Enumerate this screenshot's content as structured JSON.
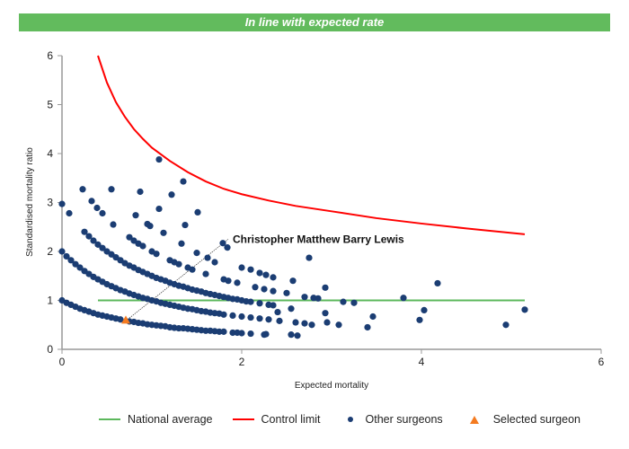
{
  "banner": {
    "text": "In line with expected rate",
    "color": "#62bb5d"
  },
  "chart_data": {
    "type": "scatter",
    "title": "",
    "xlabel": "Expected mortality",
    "ylabel": "Standardised mortality ratio",
    "xlim": [
      0,
      6
    ],
    "ylim": [
      0,
      6
    ],
    "xticks": [
      "0",
      "2",
      "4",
      "6"
    ],
    "yticks": [
      "0",
      "1",
      "2",
      "3",
      "4",
      "5",
      "6"
    ],
    "grid": false,
    "legend_position": "bottom",
    "annotation": {
      "text": "Christopher Matthew Barry Lewis",
      "x": 1.85,
      "y": 2.25
    },
    "series": [
      {
        "name": "National average",
        "type": "line",
        "color": "#5cb85c",
        "points": [
          [
            0.4,
            1
          ],
          [
            5.15,
            1
          ]
        ]
      },
      {
        "name": "Control limit",
        "type": "line",
        "color": "#ff0000",
        "points": [
          [
            0.4,
            6.0
          ],
          [
            0.5,
            5.45
          ],
          [
            0.6,
            5.05
          ],
          [
            0.7,
            4.75
          ],
          [
            0.8,
            4.5
          ],
          [
            0.9,
            4.3
          ],
          [
            1.0,
            4.12
          ],
          [
            1.2,
            3.85
          ],
          [
            1.4,
            3.62
          ],
          [
            1.6,
            3.43
          ],
          [
            1.8,
            3.28
          ],
          [
            2.0,
            3.17
          ],
          [
            2.3,
            3.04
          ],
          [
            2.6,
            2.93
          ],
          [
            3.0,
            2.82
          ],
          [
            3.5,
            2.68
          ],
          [
            4.0,
            2.57
          ],
          [
            4.5,
            2.47
          ],
          [
            5.15,
            2.35
          ]
        ]
      },
      {
        "name": "Other surgeons",
        "type": "scatter",
        "color": "#1b3d73",
        "points": [
          [
            0,
            1.0
          ],
          [
            0.05,
            0.95
          ],
          [
            0.1,
            0.91
          ],
          [
            0.15,
            0.87
          ],
          [
            0.2,
            0.83
          ],
          [
            0.25,
            0.8
          ],
          [
            0.3,
            0.77
          ],
          [
            0.35,
            0.74
          ],
          [
            0.4,
            0.71
          ],
          [
            0.45,
            0.69
          ],
          [
            0.5,
            0.67
          ],
          [
            0.55,
            0.65
          ],
          [
            0.6,
            0.63
          ],
          [
            0.65,
            0.61
          ],
          [
            0.75,
            0.57
          ],
          [
            0.8,
            0.56
          ],
          [
            0.85,
            0.54
          ],
          [
            0.9,
            0.53
          ],
          [
            0.95,
            0.51
          ],
          [
            1.0,
            0.5
          ],
          [
            1.05,
            0.49
          ],
          [
            1.1,
            0.48
          ],
          [
            1.15,
            0.47
          ],
          [
            1.2,
            0.45
          ],
          [
            1.25,
            0.44
          ],
          [
            1.3,
            0.43
          ],
          [
            1.35,
            0.43
          ],
          [
            1.4,
            0.42
          ],
          [
            1.45,
            0.41
          ],
          [
            1.5,
            0.4
          ],
          [
            1.55,
            0.39
          ],
          [
            1.6,
            0.38
          ],
          [
            1.65,
            0.38
          ],
          [
            1.7,
            0.37
          ],
          [
            1.75,
            0.36
          ],
          [
            1.8,
            0.36
          ],
          [
            1.9,
            0.34
          ],
          [
            1.95,
            0.34
          ],
          [
            2.0,
            0.33
          ],
          [
            2.1,
            0.32
          ],
          [
            2.27,
            0.31
          ],
          [
            0,
            2.0
          ],
          [
            0.05,
            1.9
          ],
          [
            0.1,
            1.82
          ],
          [
            0.15,
            1.74
          ],
          [
            0.2,
            1.67
          ],
          [
            0.25,
            1.6
          ],
          [
            0.3,
            1.54
          ],
          [
            0.35,
            1.48
          ],
          [
            0.4,
            1.43
          ],
          [
            0.45,
            1.38
          ],
          [
            0.5,
            1.33
          ],
          [
            0.55,
            1.29
          ],
          [
            0.6,
            1.25
          ],
          [
            0.65,
            1.21
          ],
          [
            0.7,
            1.18
          ],
          [
            0.75,
            1.14
          ],
          [
            0.8,
            1.11
          ],
          [
            0.85,
            1.08
          ],
          [
            0.9,
            1.05
          ],
          [
            0.95,
            1.03
          ],
          [
            1.0,
            1.0
          ],
          [
            1.05,
            0.98
          ],
          [
            1.1,
            0.95
          ],
          [
            1.15,
            0.93
          ],
          [
            1.2,
            0.91
          ],
          [
            1.25,
            0.89
          ],
          [
            1.3,
            0.87
          ],
          [
            1.35,
            0.85
          ],
          [
            1.4,
            0.83
          ],
          [
            1.45,
            0.82
          ],
          [
            1.5,
            0.8
          ],
          [
            1.55,
            0.78
          ],
          [
            1.6,
            0.77
          ],
          [
            1.65,
            0.75
          ],
          [
            1.7,
            0.74
          ],
          [
            1.75,
            0.73
          ],
          [
            1.8,
            0.71
          ],
          [
            1.9,
            0.69
          ],
          [
            2.0,
            0.67
          ],
          [
            2.1,
            0.65
          ],
          [
            2.2,
            0.63
          ],
          [
            2.3,
            0.61
          ],
          [
            0.25,
            2.4
          ],
          [
            0.3,
            2.31
          ],
          [
            0.35,
            2.22
          ],
          [
            0.4,
            2.14
          ],
          [
            0.45,
            2.07
          ],
          [
            0.5,
            2.0
          ],
          [
            0.55,
            1.94
          ],
          [
            0.6,
            1.88
          ],
          [
            0.65,
            1.82
          ],
          [
            0.7,
            1.76
          ],
          [
            0.75,
            1.71
          ],
          [
            0.8,
            1.67
          ],
          [
            0.85,
            1.62
          ],
          [
            0.9,
            1.58
          ],
          [
            0.95,
            1.54
          ],
          [
            1.0,
            1.5
          ],
          [
            1.05,
            1.46
          ],
          [
            1.1,
            1.43
          ],
          [
            1.15,
            1.4
          ],
          [
            1.2,
            1.36
          ],
          [
            1.25,
            1.33
          ],
          [
            1.3,
            1.3
          ],
          [
            1.35,
            1.28
          ],
          [
            1.4,
            1.25
          ],
          [
            1.45,
            1.22
          ],
          [
            1.5,
            1.2
          ],
          [
            1.55,
            1.18
          ],
          [
            1.6,
            1.15
          ],
          [
            1.65,
            1.13
          ],
          [
            1.7,
            1.11
          ],
          [
            1.75,
            1.09
          ],
          [
            1.8,
            1.07
          ],
          [
            1.85,
            1.05
          ],
          [
            1.9,
            1.03
          ],
          [
            1.95,
            1.02
          ],
          [
            2.0,
            1.0
          ],
          [
            2.05,
            0.98
          ],
          [
            2.1,
            0.97
          ],
          [
            2.2,
            0.94
          ],
          [
            2.3,
            0.91
          ],
          [
            2.35,
            0.9
          ],
          [
            0.57,
            2.55
          ],
          [
            0.75,
            2.29
          ],
          [
            0.8,
            2.22
          ],
          [
            0.85,
            2.16
          ],
          [
            0.9,
            2.11
          ],
          [
            1.0,
            2.0
          ],
          [
            1.05,
            1.95
          ],
          [
            1.2,
            1.82
          ],
          [
            1.25,
            1.78
          ],
          [
            1.3,
            1.74
          ],
          [
            1.4,
            1.67
          ],
          [
            1.45,
            1.63
          ],
          [
            1.6,
            1.54
          ],
          [
            1.8,
            1.43
          ],
          [
            1.85,
            1.4
          ],
          [
            1.95,
            1.36
          ],
          [
            2.15,
            1.27
          ],
          [
            2.25,
            1.23
          ],
          [
            2.35,
            1.19
          ],
          [
            2.5,
            1.15
          ],
          [
            2.7,
            1.07
          ],
          [
            2.8,
            1.05
          ],
          [
            2.85,
            1.04
          ],
          [
            0,
            2.97
          ],
          [
            0.08,
            2.78
          ],
          [
            0.23,
            3.27
          ],
          [
            0.33,
            3.03
          ],
          [
            0.39,
            2.89
          ],
          [
            0.45,
            2.78
          ],
          [
            0.55,
            3.27
          ],
          [
            0.82,
            2.74
          ],
          [
            0.87,
            3.22
          ],
          [
            0.95,
            2.56
          ],
          [
            0.98,
            2.52
          ],
          [
            1.08,
            3.88
          ],
          [
            1.08,
            2.87
          ],
          [
            1.13,
            2.38
          ],
          [
            1.22,
            3.16
          ],
          [
            1.33,
            2.16
          ],
          [
            1.35,
            3.43
          ],
          [
            1.37,
            2.54
          ],
          [
            1.51,
            2.8
          ],
          [
            1.79,
            2.17
          ],
          [
            1.84,
            2.08
          ],
          [
            1.5,
            1.97
          ],
          [
            1.62,
            1.87
          ],
          [
            1.7,
            1.78
          ],
          [
            2.0,
            1.67
          ],
          [
            2.1,
            1.63
          ],
          [
            2.2,
            1.56
          ],
          [
            2.27,
            1.52
          ],
          [
            2.35,
            1.47
          ],
          [
            2.57,
            1.4
          ],
          [
            2.75,
            1.87
          ],
          [
            2.93,
            1.26
          ],
          [
            3.13,
            0.97
          ],
          [
            3.25,
            0.95
          ],
          [
            3.8,
            1.05
          ],
          [
            4.18,
            1.35
          ],
          [
            4.03,
            0.8
          ],
          [
            3.98,
            0.6
          ],
          [
            3.46,
            0.67
          ],
          [
            3.4,
            0.45
          ],
          [
            4.94,
            0.5
          ],
          [
            5.15,
            0.81
          ],
          [
            2.95,
            0.55
          ],
          [
            3.08,
            0.5
          ],
          [
            2.78,
            0.5
          ],
          [
            2.7,
            0.53
          ],
          [
            2.55,
            0.83
          ],
          [
            2.55,
            0.3
          ],
          [
            2.62,
            0.28
          ],
          [
            2.93,
            0.74
          ],
          [
            2.42,
            0.58
          ],
          [
            2.25,
            0.3
          ],
          [
            2.4,
            0.76
          ],
          [
            2.6,
            0.55
          ]
        ]
      },
      {
        "name": "Selected surgeon",
        "type": "scatter",
        "marker": "triangle",
        "color": "#f47b20",
        "points": [
          [
            0.71,
            0.58
          ]
        ]
      }
    ]
  }
}
